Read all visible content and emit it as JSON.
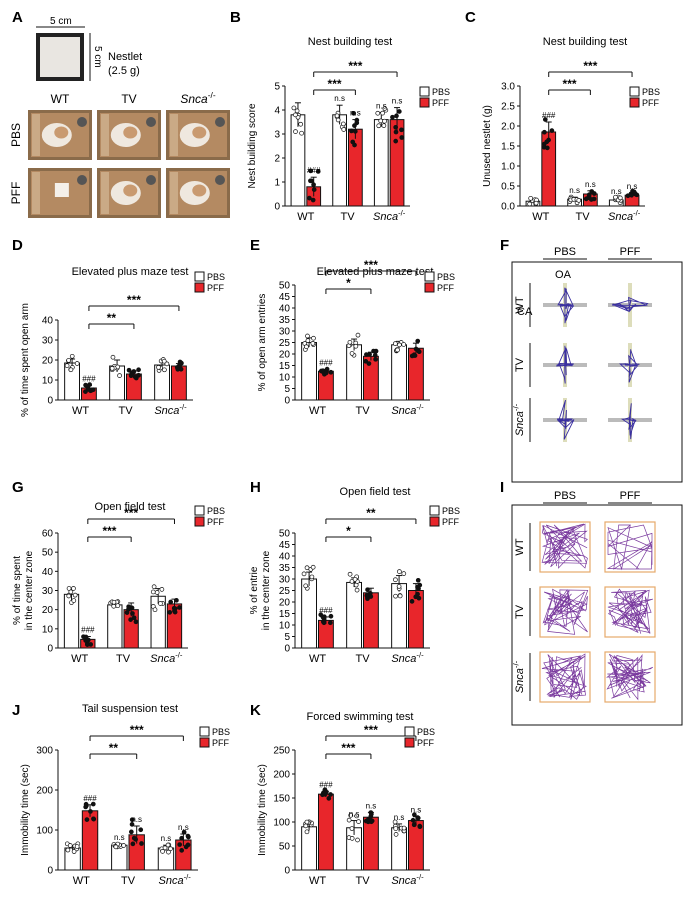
{
  "panel_letters": [
    "A",
    "B",
    "C",
    "D",
    "E",
    "F",
    "G",
    "H",
    "I",
    "J",
    "K"
  ],
  "panel_a": {
    "dim_width": "5 cm",
    "dim_height": "5 cm",
    "nestlet_label": "Nestlet",
    "nestlet_weight": "(2.5 g)",
    "columns": [
      "WT",
      "TV",
      "Snca"
    ],
    "rows": [
      "PBS",
      "PFF"
    ]
  },
  "legend": {
    "pbs": "PBS",
    "pff": "PFF"
  },
  "colors": {
    "pbs_fill": "#ffffff",
    "pff_fill": "#e8262b",
    "stroke": "#111111"
  },
  "groups": [
    "WT",
    "TV",
    "Snca"
  ],
  "knockout_superscript": "-/-",
  "panel_f": {
    "cols": [
      "PBS",
      "PFF"
    ],
    "rows": [
      "WT",
      "TV",
      "Snca"
    ],
    "oa_label": "OA",
    "ca_label": "CA"
  },
  "panel_i": {
    "cols": [
      "PBS",
      "PFF"
    ],
    "rows": [
      "WT",
      "TV",
      "Snca"
    ]
  },
  "chart_data": [
    {
      "id": "B",
      "type": "bar",
      "title": "Nest building test",
      "ylabel": "Nest building score",
      "categories": [
        "WT",
        "TV",
        "Snca-/-"
      ],
      "ylim": [
        0,
        5
      ],
      "yticks": [
        0,
        1,
        2,
        3,
        4,
        5
      ],
      "series": [
        {
          "name": "PBS",
          "values": [
            3.8,
            3.8,
            3.6
          ],
          "errors": [
            0.5,
            0.4,
            0.3
          ],
          "marks": [
            "",
            "n.s",
            "n.s"
          ]
        },
        {
          "name": "PFF",
          "values": [
            0.8,
            3.2,
            3.6
          ],
          "errors": [
            0.4,
            0.4,
            0.5
          ],
          "marks": [
            "###",
            "n.s",
            "n.s"
          ]
        }
      ],
      "comparisons": [
        {
          "to": 1,
          "label": "***"
        },
        {
          "to": 2,
          "label": "***"
        }
      ]
    },
    {
      "id": "C",
      "type": "bar",
      "title": "Nest building test",
      "ylabel": "Unused nestlet (g)",
      "categories": [
        "WT",
        "TV",
        "Snca-/-"
      ],
      "ylim": [
        0,
        3.0
      ],
      "yticks": [
        0.0,
        0.5,
        1.0,
        1.5,
        2.0,
        2.5,
        3.0
      ],
      "series": [
        {
          "name": "PBS",
          "values": [
            0.12,
            0.17,
            0.15
          ],
          "errors": [
            0.05,
            0.05,
            0.05
          ],
          "marks": [
            "",
            "n.s",
            "n.s"
          ]
        },
        {
          "name": "PFF",
          "values": [
            1.85,
            0.3,
            0.27
          ],
          "errors": [
            0.25,
            0.08,
            0.06
          ],
          "marks": [
            "###",
            "n.s",
            "n.s"
          ]
        }
      ],
      "comparisons": [
        {
          "to": 1,
          "label": "***"
        },
        {
          "to": 2,
          "label": "***"
        }
      ]
    },
    {
      "id": "D",
      "type": "bar",
      "title": "Elevated plus maze test",
      "ylabel": "% of time spent open arm",
      "categories": [
        "WT",
        "TV",
        "Snca-/-"
      ],
      "ylim": [
        0,
        40
      ],
      "yticks": [
        0,
        10,
        20,
        30,
        40
      ],
      "series": [
        {
          "name": "PBS",
          "values": [
            18.5,
            17,
            17.5
          ],
          "errors": [
            2.0,
            3.0,
            1.8
          ],
          "marks": [
            "",
            "",
            ""
          ]
        },
        {
          "name": "PFF",
          "values": [
            6,
            13,
            17
          ],
          "errors": [
            1.2,
            1.5,
            1.2
          ],
          "marks": [
            "###",
            "",
            ""
          ]
        }
      ],
      "comparisons": [
        {
          "to": 1,
          "label": "**"
        },
        {
          "to": 2,
          "label": "***"
        }
      ]
    },
    {
      "id": "E",
      "type": "bar",
      "title": "Elevated plus maze test",
      "ylabel": "% of open arm entries",
      "categories": [
        "WT",
        "TV",
        "Snca-/-"
      ],
      "ylim": [
        0,
        50
      ],
      "yticks": [
        0,
        5,
        10,
        15,
        20,
        25,
        30,
        35,
        40,
        45,
        50
      ],
      "series": [
        {
          "name": "PBS",
          "values": [
            25,
            24,
            24
          ],
          "errors": [
            2.0,
            2.5,
            1.5
          ],
          "marks": [
            "",
            "",
            ""
          ]
        },
        {
          "name": "PFF",
          "values": [
            12.5,
            19,
            22.5
          ],
          "errors": [
            0.8,
            1.8,
            2.2
          ],
          "marks": [
            "###",
            "",
            ""
          ]
        }
      ],
      "comparisons": [
        {
          "to": 1,
          "label": "*"
        },
        {
          "to": 2,
          "label": "***"
        }
      ]
    },
    {
      "id": "G",
      "type": "bar",
      "title": "Open field test",
      "ylabel": "% of time spent in the center zone",
      "categories": [
        "WT",
        "TV",
        "Snca-/-"
      ],
      "ylim": [
        0,
        60
      ],
      "yticks": [
        0,
        10,
        20,
        30,
        40,
        50,
        60
      ],
      "series": [
        {
          "name": "PBS",
          "values": [
            28,
            22.5,
            27
          ],
          "errors": [
            3.0,
            1.0,
            4.0
          ],
          "marks": [
            "",
            "",
            ""
          ]
        },
        {
          "name": "PFF",
          "values": [
            4.5,
            20,
            23
          ],
          "errors": [
            1.5,
            3.5,
            2.5
          ],
          "marks": [
            "###",
            "",
            ""
          ]
        }
      ],
      "comparisons": [
        {
          "to": 1,
          "label": "***"
        },
        {
          "to": 2,
          "label": "***"
        }
      ]
    },
    {
      "id": "H",
      "type": "bar",
      "title": "Open field test",
      "ylabel": "% of entrie in the center zone",
      "categories": [
        "WT",
        "TV",
        "Snca-/-"
      ],
      "ylim": [
        0,
        50
      ],
      "yticks": [
        0,
        5,
        10,
        15,
        20,
        25,
        30,
        35,
        40,
        45,
        50
      ],
      "series": [
        {
          "name": "PBS",
          "values": [
            30,
            28.5,
            28
          ],
          "errors": [
            3.0,
            2.0,
            3.5
          ],
          "marks": [
            "",
            "",
            ""
          ]
        },
        {
          "name": "PFF",
          "values": [
            12,
            24,
            25
          ],
          "errors": [
            1.5,
            2.0,
            3.0
          ],
          "marks": [
            "###",
            "",
            ""
          ]
        }
      ],
      "comparisons": [
        {
          "to": 1,
          "label": "*"
        },
        {
          "to": 2,
          "label": "**"
        }
      ]
    },
    {
      "id": "J",
      "type": "bar",
      "title": "Tail suspension test",
      "ylabel": "Immobility time (sec)",
      "categories": [
        "WT",
        "TV",
        "Snca-/-"
      ],
      "ylim": [
        0,
        300
      ],
      "yticks": [
        0,
        100,
        200,
        300
      ],
      "series": [
        {
          "name": "PBS",
          "values": [
            55,
            62,
            55
          ],
          "errors": [
            6,
            3,
            7
          ],
          "marks": [
            "",
            "n.s",
            "n.s"
          ]
        },
        {
          "name": "PFF",
          "values": [
            148,
            88,
            75
          ],
          "errors": [
            15,
            22,
            15
          ],
          "marks": [
            "###",
            "n.s",
            "n.s"
          ]
        }
      ],
      "comparisons": [
        {
          "to": 1,
          "label": "**"
        },
        {
          "to": 2,
          "label": "***"
        }
      ]
    },
    {
      "id": "K",
      "type": "bar",
      "title": "Forced swimming test",
      "ylabel": "Immobility time (sec)",
      "categories": [
        "WT",
        "TV",
        "Snca-/-"
      ],
      "ylim": [
        0,
        250
      ],
      "yticks": [
        0,
        50,
        100,
        150,
        200,
        250
      ],
      "series": [
        {
          "name": "PBS",
          "values": [
            90,
            88,
            88
          ],
          "errors": [
            8,
            15,
            8
          ],
          "marks": [
            "",
            "n.s",
            "n.s"
          ]
        },
        {
          "name": "PFF",
          "values": [
            158,
            110,
            103
          ],
          "errors": [
            6,
            10,
            8
          ],
          "marks": [
            "###",
            "n.s",
            "n.s"
          ]
        }
      ],
      "comparisons": [
        {
          "to": 1,
          "label": "***"
        },
        {
          "to": 2,
          "label": "***"
        }
      ]
    }
  ]
}
